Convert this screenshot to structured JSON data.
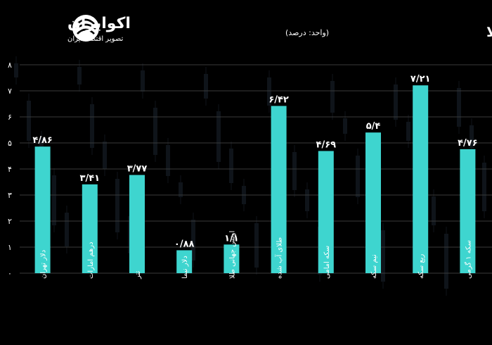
{
  "brand": {
    "name": "اکوایران",
    "tagline": "تصویر اقتصاد ایران",
    "icon": "ecoiran-swirl-logo"
  },
  "header": {
    "title": "تغییرات هفتگی بازار ارز و طلا",
    "unit": "(واحد: درصد)"
  },
  "chart_data": {
    "type": "bar",
    "categories": [
      "دلار تهران",
      "درهم امارات",
      "تتر",
      "دلار نیما",
      "اونس جهانی طلا",
      "طلای آب شده",
      "سکه امامی",
      "نیم سکه",
      "ربع سکه",
      "سکه ۱ گرمی"
    ],
    "values": [
      4.86,
      3.41,
      3.77,
      0.88,
      1.1,
      6.42,
      4.69,
      5.4,
      7.21,
      4.76
    ],
    "value_labels": [
      "۴/۸۶",
      "۳/۴۱",
      "۳/۷۷",
      "۰/۸۸",
      "۱/۱",
      "۶/۴۲",
      "۴/۶۹",
      "۵/۴",
      "۷/۲۱",
      "۴/۷۶"
    ],
    "ylim": [
      0,
      8
    ],
    "yticks": [
      "۰",
      "۱",
      "۲",
      "۳",
      "۴",
      "۵",
      "۶",
      "۷",
      "۸"
    ],
    "grid": true,
    "bar_color": "#3ed5cf"
  }
}
